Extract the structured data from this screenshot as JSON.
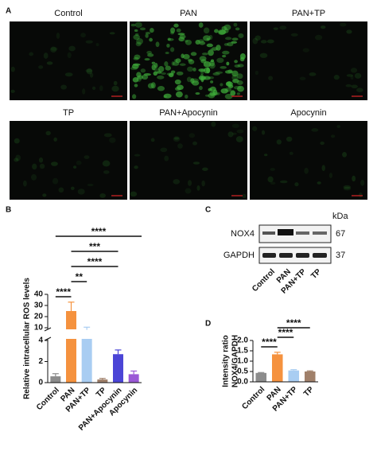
{
  "panel_labels": [
    "A",
    "B",
    "C",
    "D"
  ],
  "images": {
    "titles": [
      "Control",
      "PAN",
      "PAN+TP",
      "TP",
      "PAN+Apocynin",
      "Apocynin"
    ]
  },
  "blot": {
    "unit": "kDa",
    "rows": [
      {
        "label": "NOX4",
        "kda": "67"
      },
      {
        "label": "GAPDH",
        "kda": "37"
      }
    ],
    "lanes": [
      "Control",
      "PAN",
      "PAN+TP",
      "TP"
    ]
  },
  "chart_data": [
    {
      "type": "bar",
      "y_label": [
        "Relative intracellular ROS levels"
      ],
      "categories": [
        "Control",
        "PAN",
        "PAN+TP",
        "TP",
        "PAN+Apocynin",
        "Apocynin"
      ],
      "values": [
        0.6,
        25,
        9,
        0.3,
        2.7,
        0.8
      ],
      "errors": [
        0.25,
        8,
        1.5,
        0.1,
        0.4,
        0.3
      ],
      "colors": [
        "#8c8c8c",
        "#f5923e",
        "#a9cdf2",
        "#a0806a",
        "#4b45d6",
        "#9b59d6"
      ],
      "ylim": [
        0,
        40
      ],
      "ylim_segments": [
        [
          0,
          4
        ],
        [
          10,
          40
        ]
      ],
      "yticks": [
        0,
        2,
        4,
        10,
        20,
        30,
        40
      ],
      "significance": [
        {
          "label": "****",
          "from": 0,
          "to": 5
        },
        {
          "label": "***",
          "from": 1,
          "to": 4
        },
        {
          "label": "****",
          "from": 1,
          "to": 4
        },
        {
          "label": "**",
          "from": 1,
          "to": 2
        },
        {
          "label": "****",
          "from": 0,
          "to": 1
        }
      ]
    },
    {
      "type": "bar",
      "y_label": [
        "Intensity ratio",
        "NOX4/GAPDH"
      ],
      "categories": [
        "Control",
        "PAN",
        "PAN+TP",
        "TP"
      ],
      "values": [
        0.43,
        1.33,
        0.55,
        0.5
      ],
      "errors": [
        0.02,
        0.1,
        0.04,
        0.03
      ],
      "colors": [
        "#8c8c8c",
        "#f5923e",
        "#a9cdf2",
        "#a0806a"
      ],
      "ylim": [
        0,
        2
      ],
      "yticks": [
        {
          "value": 0,
          "label": "0.0"
        },
        {
          "value": 0.5,
          "label": "0.5"
        },
        {
          "value": 1,
          "label": "1.0"
        },
        {
          "value": 1.5,
          "label": "1.5"
        },
        {
          "value": 2,
          "label": "2.0"
        }
      ],
      "significance": [
        {
          "label": "****",
          "from": 1,
          "to": 3
        },
        {
          "label": "****",
          "from": 1,
          "to": 2
        },
        {
          "label": "****",
          "from": 0,
          "to": 1
        }
      ]
    }
  ]
}
